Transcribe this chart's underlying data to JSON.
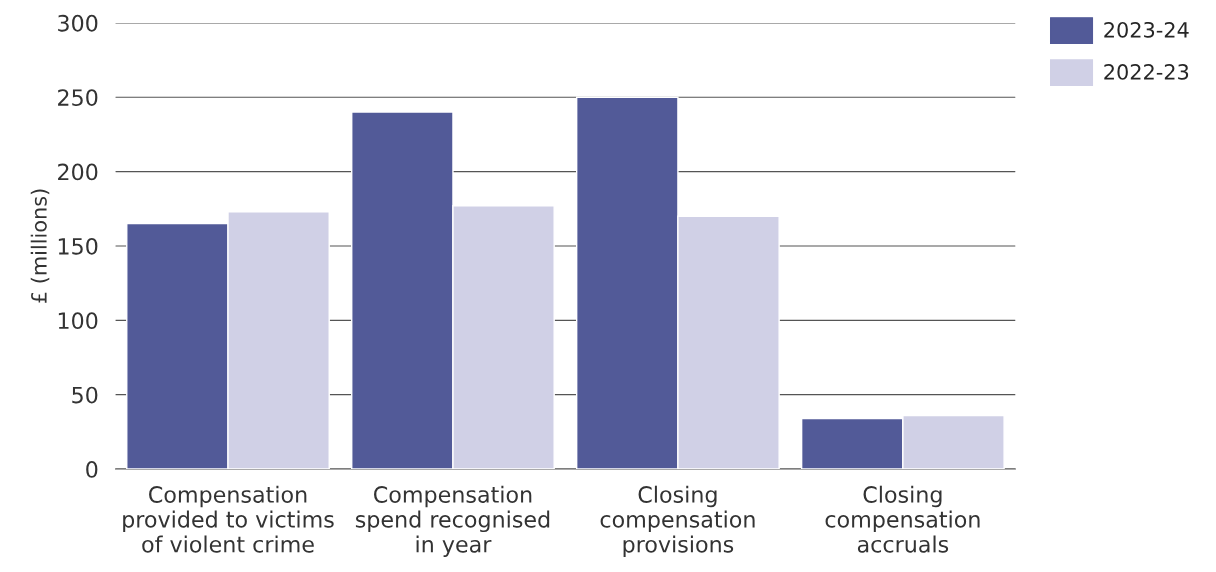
{
  "chart_data": {
    "type": "bar",
    "ylabel": "£ (millions)",
    "categories": [
      "Compensation\nprovided to victims\nof violent crime",
      "Compensation\nspend recognised\nin year",
      "Closing\ncompensation\nprovisions",
      "Closing\ncompensation\naccruals"
    ],
    "series": [
      {
        "name": "2023-24",
        "color": "#525a98",
        "values": [
          165,
          240,
          250,
          34
        ]
      },
      {
        "name": "2022-23",
        "color": "#d0d0e6",
        "values": [
          173,
          177,
          170,
          36
        ]
      }
    ],
    "ylim": [
      0,
      300
    ],
    "yticks": [
      0,
      50,
      100,
      150,
      200,
      250,
      300
    ],
    "grid": "y",
    "legend": "top right"
  }
}
